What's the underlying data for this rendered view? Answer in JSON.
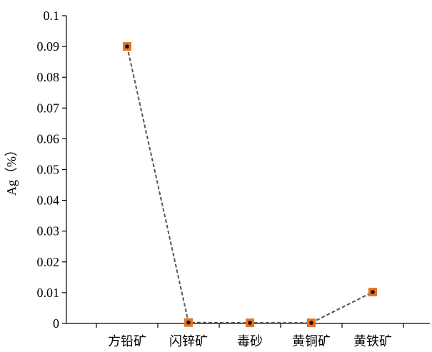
{
  "chart_data": {
    "type": "line",
    "categories": [
      "方铅矿",
      "闪锌矿",
      "毒砂",
      "黄铜矿",
      "黄铁矿"
    ],
    "series": [
      {
        "values": [
          0.09,
          0.0003,
          0.0002,
          0.0002,
          0.0102
        ],
        "marker_color": "#e8731f",
        "center_color": "#111111",
        "line_color": "#555555"
      }
    ],
    "ylabel": "Ag（%）",
    "ylim": [
      0,
      0.1
    ],
    "yticks": [
      0,
      0.01,
      0.02,
      0.03,
      0.04,
      0.05,
      0.06,
      0.07,
      0.08,
      0.09,
      0.1
    ],
    "ytick_labels": [
      "0",
      "0.01",
      "0.02",
      "0.03",
      "0.04",
      "0.05",
      "0.06",
      "0.07",
      "0.08",
      "0.09",
      "0.1"
    ],
    "grid": false,
    "legend": "none",
    "line_style": "dashed"
  }
}
